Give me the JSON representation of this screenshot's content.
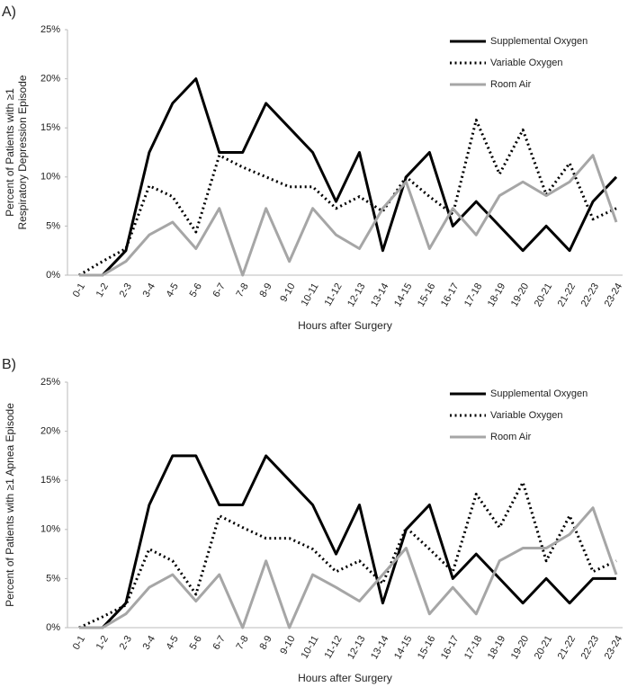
{
  "chart_data": [
    {
      "type": "line",
      "panel": "A)",
      "ylabel": [
        "Percent of Patients with ≥1",
        "Respiratory Depression Episode"
      ],
      "xlabel": "Hours after Surgery",
      "categories": [
        "0-1",
        "1-2",
        "2-3",
        "3-4",
        "4-5",
        "5-6",
        "6-7",
        "7-8",
        "8-9",
        "9-10",
        "10-11",
        "11-12",
        "12-13",
        "13-14",
        "14-15",
        "15-16",
        "16-17",
        "17-18",
        "18-19",
        "19-20",
        "20-21",
        "21-22",
        "22-23",
        "23-24"
      ],
      "ylim": [
        0,
        25
      ],
      "yticks": [
        {
          "value": 0,
          "label": "0%"
        },
        {
          "value": 5,
          "label": "5%"
        },
        {
          "value": 10,
          "label": "10%"
        },
        {
          "value": 15,
          "label": "15%"
        },
        {
          "value": 20,
          "label": "20%"
        },
        {
          "value": 25,
          "label": "25%"
        }
      ],
      "grid": false,
      "legend": "upper right",
      "series": [
        {
          "name": "Supplemental Oxygen",
          "color": "#000000",
          "dash": "solid",
          "values": [
            0,
            0,
            2.5,
            12.5,
            17.5,
            20,
            12.5,
            12.5,
            17.5,
            15,
            12.5,
            7.5,
            12.5,
            2.5,
            10,
            12.5,
            5,
            7.5,
            5,
            2.5,
            5,
            2.5,
            7.5,
            10
          ]
        },
        {
          "name": "Variable Oxygen",
          "color": "#000000",
          "dash": "dotted",
          "values": [
            0,
            1.4,
            2.7,
            9.1,
            8,
            4.4,
            12.2,
            11,
            10,
            9,
            9,
            6.8,
            8,
            6.5,
            10,
            8,
            6.2,
            15.8,
            10.3,
            14.8,
            8.2,
            11.4,
            5.7,
            6.8
          ]
        },
        {
          "name": "Room Air",
          "color": "#a6a6a6",
          "dash": "solid",
          "values": [
            0,
            0,
            1.4,
            4.1,
            5.4,
            2.7,
            6.8,
            0,
            6.8,
            1.4,
            6.8,
            4.1,
            2.7,
            6.8,
            9.5,
            2.7,
            6.8,
            4.1,
            8.1,
            9.5,
            8.1,
            9.5,
            12.2,
            5.4
          ]
        }
      ]
    },
    {
      "type": "line",
      "panel": "B)",
      "ylabel": [
        "Percent of Patients with ≥1 Apnea Episode"
      ],
      "xlabel": "Hours after Surgery",
      "categories": [
        "0-1",
        "1-2",
        "2-3",
        "3-4",
        "4-5",
        "5-6",
        "6-7",
        "7-8",
        "8-9",
        "9-10",
        "10-11",
        "11-12",
        "12-13",
        "13-14",
        "14-15",
        "15-16",
        "16-17",
        "17-18",
        "18-19",
        "19-20",
        "20-21",
        "21-22",
        "22-23",
        "23-24"
      ],
      "ylim": [
        0,
        25
      ],
      "yticks": [
        {
          "value": 0,
          "label": "0%"
        },
        {
          "value": 5,
          "label": "5%"
        },
        {
          "value": 10,
          "label": "10%"
        },
        {
          "value": 15,
          "label": "15%"
        },
        {
          "value": 20,
          "label": "20%"
        },
        {
          "value": 25,
          "label": "25%"
        }
      ],
      "grid": false,
      "legend": "upper right",
      "series": [
        {
          "name": "Supplemental Oxygen",
          "color": "#000000",
          "dash": "solid",
          "values": [
            0,
            0,
            2.5,
            12.5,
            17.5,
            17.5,
            12.5,
            12.5,
            17.5,
            15,
            12.5,
            7.5,
            12.5,
            2.5,
            10,
            12.5,
            5,
            7.5,
            5,
            2.5,
            5,
            2.5,
            5,
            5
          ]
        },
        {
          "name": "Variable Oxygen",
          "color": "#000000",
          "dash": "dotted",
          "values": [
            0,
            1.1,
            2.3,
            8,
            6.8,
            3.4,
            11.4,
            10.2,
            9.1,
            9.1,
            8,
            5.7,
            6.8,
            4.5,
            10.2,
            8,
            5.7,
            13.6,
            10.2,
            14.8,
            6.8,
            11.4,
            5.7,
            6.8
          ]
        },
        {
          "name": "Room Air",
          "color": "#a6a6a6",
          "dash": "solid",
          "values": [
            0,
            0,
            1.4,
            4.1,
            5.4,
            2.7,
            5.4,
            0,
            6.8,
            0,
            5.4,
            4.1,
            2.7,
            5.4,
            8.1,
            1.4,
            4.1,
            1.4,
            6.8,
            8.1,
            8.1,
            9.5,
            12.2,
            5.4
          ]
        }
      ]
    }
  ]
}
